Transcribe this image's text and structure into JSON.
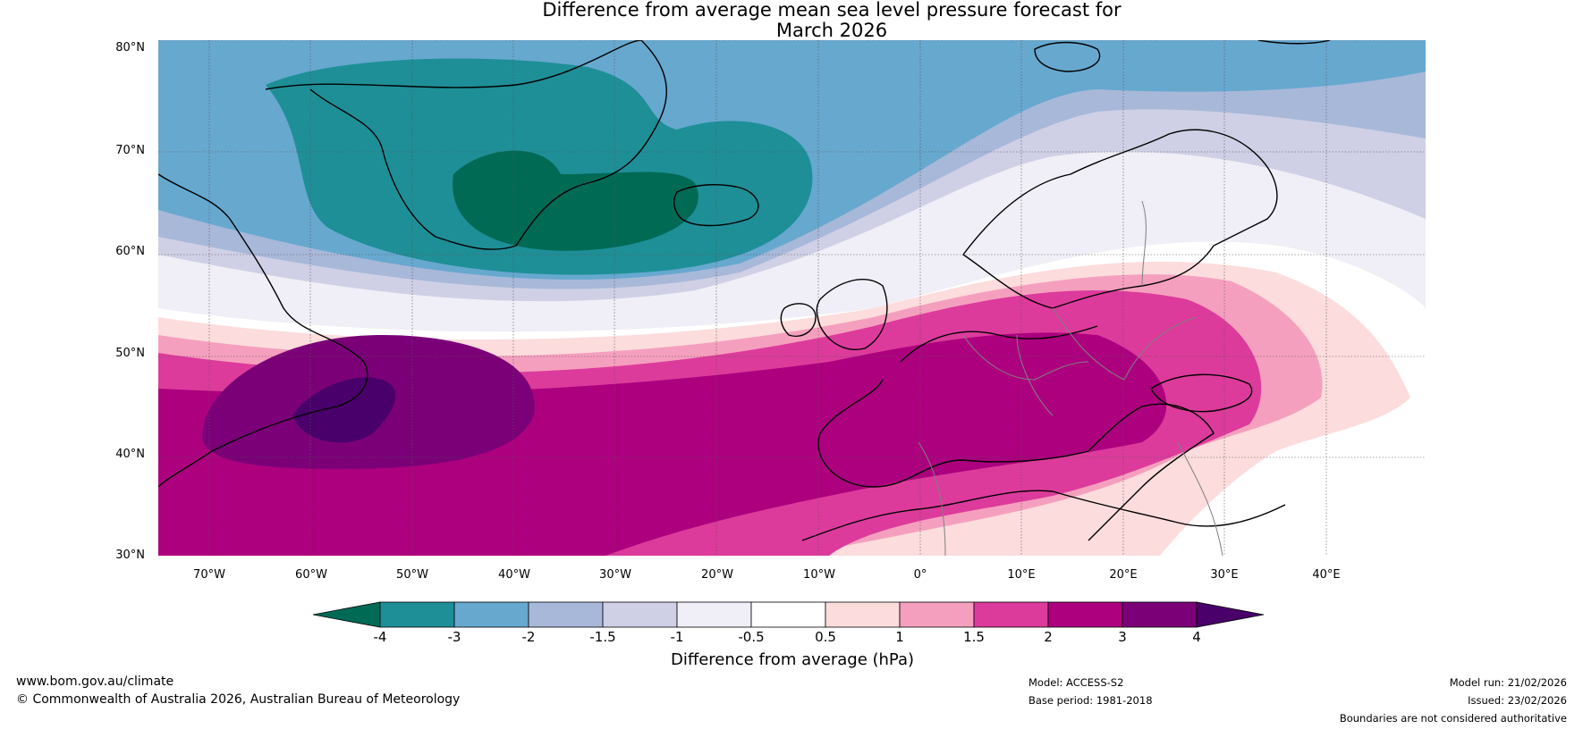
{
  "title": {
    "line1": "Difference from average mean sea level pressure forecast for",
    "line2": "March 2026"
  },
  "map": {
    "lat_labels": [
      "80°N",
      "70°N",
      "60°N",
      "50°N",
      "40°N",
      "30°N"
    ],
    "lon_labels": [
      "70°W",
      "60°W",
      "50°W",
      "40°W",
      "30°W",
      "20°W",
      "10°W",
      "0°",
      "10°E",
      "20°E",
      "30°E",
      "40°E"
    ]
  },
  "colorbar": {
    "label": "Difference from average (hPa)",
    "ticks": [
      "-4",
      "-3",
      "-2",
      "-1.5",
      "-1",
      "-0.5",
      "0.5",
      "1",
      "1.5",
      "2",
      "3",
      "4"
    ],
    "colors": {
      "below": "#006a55",
      "c1": "#1e8f97",
      "c2": "#67a8cf",
      "c3": "#a8b8d9",
      "c4": "#cfd0e5",
      "c5": "#f0eef6",
      "c6": "#ffffff",
      "c7": "#fcdcdc",
      "c8": "#f59fbe",
      "c9": "#dc3b9b",
      "c10": "#ad007f",
      "c11": "#7b0078",
      "above": "#49006a"
    }
  },
  "footer": {
    "website": "www.bom.gov.au/climate",
    "copyright": "© Commonwealth of Australia 2026, Australian Bureau of Meteorology",
    "model": "Model: ACCESS-S2",
    "base_period": "Base period: 1981-2018",
    "model_run": "Model run: 21/02/2026",
    "issued": "Issued: 23/02/2026",
    "disclaimer": "Boundaries are not considered authoritative"
  }
}
